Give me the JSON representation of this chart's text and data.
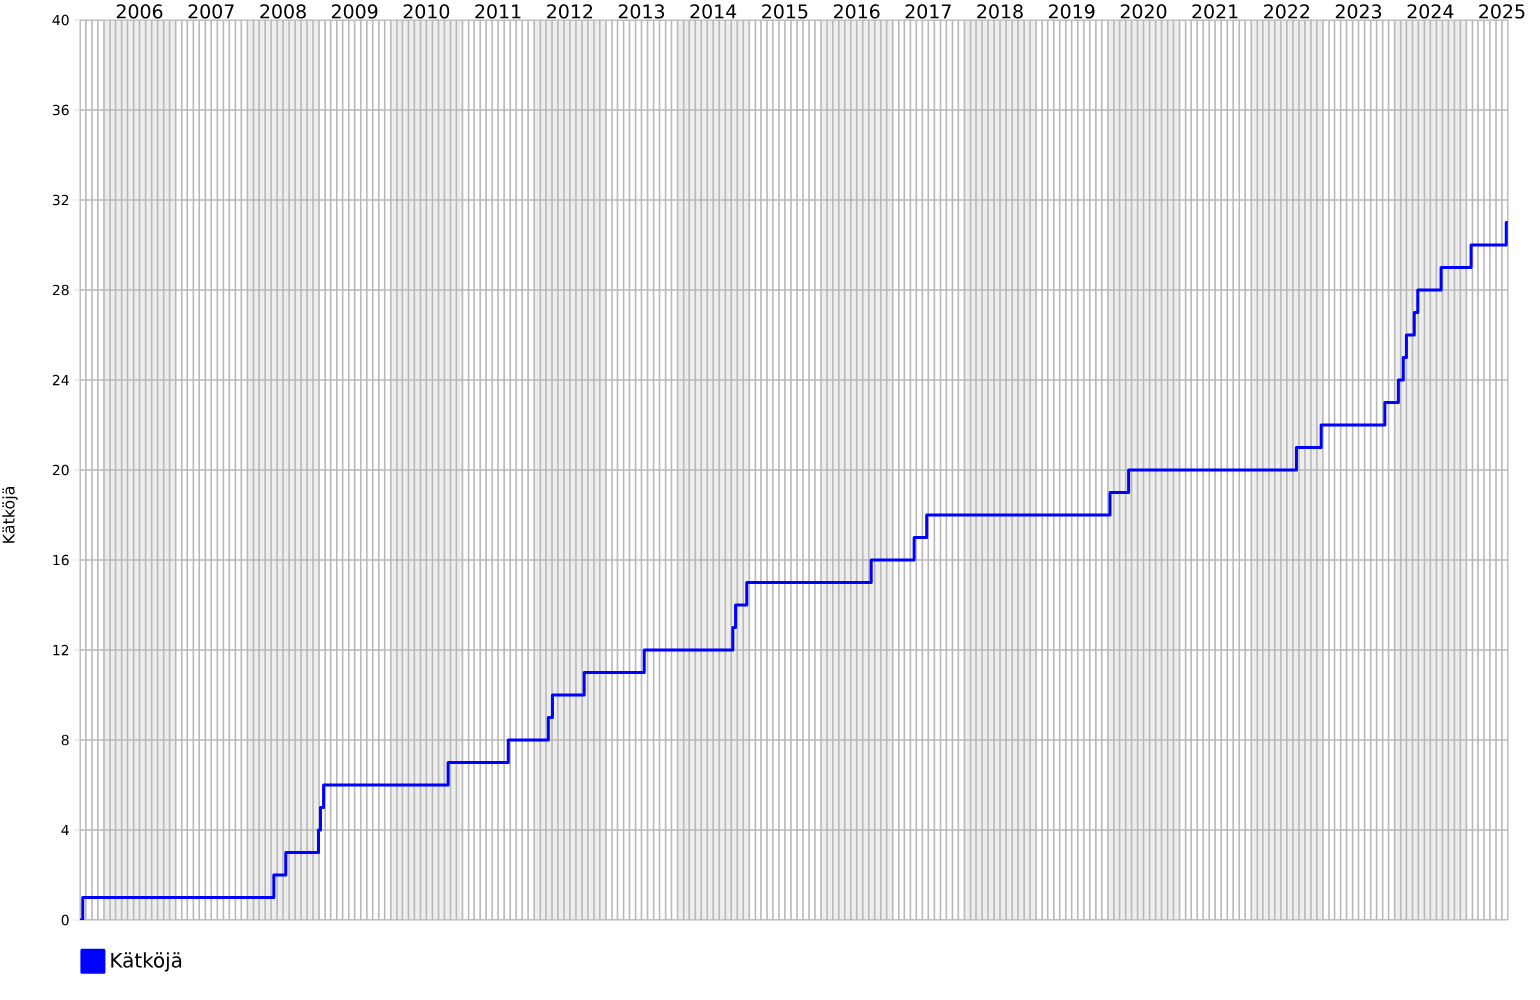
{
  "chart_data": {
    "type": "step",
    "ylabel": "Kätköjä",
    "xlim": [
      "2005-09",
      "2025-08"
    ],
    "ylim": [
      0,
      40
    ],
    "yticks": [
      0,
      4,
      8,
      12,
      16,
      20,
      24,
      28,
      32,
      36,
      40
    ],
    "xticks": [
      {
        "value": "2005-09",
        "label": null
      },
      {
        "value": "2005-10",
        "label": null
      },
      {
        "value": "2005-11",
        "label": null
      },
      {
        "value": "2005-12",
        "label": null
      },
      {
        "value": "2006-01",
        "label": null
      },
      {
        "value": "2006-02",
        "label": null
      },
      {
        "value": "2006-03",
        "label": null
      },
      {
        "value": "2006-04",
        "label": null
      },
      {
        "value": "2006-05",
        "label": null
      },
      {
        "value": "2006-06",
        "label": null
      },
      {
        "value": "2006-07",
        "label": "2006"
      },
      {
        "value": "2006-08",
        "label": null
      },
      {
        "value": "2006-09",
        "label": null
      },
      {
        "value": "2006-10",
        "label": null
      },
      {
        "value": "2006-11",
        "label": null
      },
      {
        "value": "2006-12",
        "label": null
      },
      {
        "value": "2007-01",
        "label": null
      },
      {
        "value": "2007-02",
        "label": null
      },
      {
        "value": "2007-03",
        "label": null
      },
      {
        "value": "2007-04",
        "label": null
      },
      {
        "value": "2007-05",
        "label": null
      },
      {
        "value": "2007-06",
        "label": null
      },
      {
        "value": "2007-07",
        "label": "2007"
      },
      {
        "value": "2007-08",
        "label": null
      },
      {
        "value": "2007-09",
        "label": null
      },
      {
        "value": "2007-10",
        "label": null
      },
      {
        "value": "2007-11",
        "label": null
      },
      {
        "value": "2007-12",
        "label": null
      },
      {
        "value": "2008-01",
        "label": null
      },
      {
        "value": "2008-02",
        "label": null
      },
      {
        "value": "2008-03",
        "label": null
      },
      {
        "value": "2008-04",
        "label": null
      },
      {
        "value": "2008-05",
        "label": null
      },
      {
        "value": "2008-06",
        "label": null
      },
      {
        "value": "2008-07",
        "label": "2008"
      },
      {
        "value": "2008-08",
        "label": null
      },
      {
        "value": "2008-09",
        "label": null
      },
      {
        "value": "2008-10",
        "label": null
      },
      {
        "value": "2008-11",
        "label": null
      },
      {
        "value": "2008-12",
        "label": null
      },
      {
        "value": "2009-01",
        "label": null
      },
      {
        "value": "2009-02",
        "label": null
      },
      {
        "value": "2009-03",
        "label": null
      },
      {
        "value": "2009-04",
        "label": null
      },
      {
        "value": "2009-05",
        "label": null
      },
      {
        "value": "2009-06",
        "label": null
      },
      {
        "value": "2009-07",
        "label": "2009"
      },
      {
        "value": "2009-08",
        "label": null
      },
      {
        "value": "2009-09",
        "label": null
      },
      {
        "value": "2009-10",
        "label": null
      },
      {
        "value": "2009-11",
        "label": null
      },
      {
        "value": "2009-12",
        "label": null
      },
      {
        "value": "2010-01",
        "label": null
      },
      {
        "value": "2010-02",
        "label": null
      },
      {
        "value": "2010-03",
        "label": null
      },
      {
        "value": "2010-04",
        "label": null
      },
      {
        "value": "2010-05",
        "label": null
      },
      {
        "value": "2010-06",
        "label": null
      },
      {
        "value": "2010-07",
        "label": "2010"
      },
      {
        "value": "2010-08",
        "label": null
      },
      {
        "value": "2010-09",
        "label": null
      },
      {
        "value": "2010-10",
        "label": null
      },
      {
        "value": "2010-11",
        "label": null
      },
      {
        "value": "2010-12",
        "label": null
      },
      {
        "value": "2011-01",
        "label": null
      },
      {
        "value": "2011-02",
        "label": null
      },
      {
        "value": "2011-03",
        "label": null
      },
      {
        "value": "2011-04",
        "label": null
      },
      {
        "value": "2011-05",
        "label": null
      },
      {
        "value": "2011-06",
        "label": null
      },
      {
        "value": "2011-07",
        "label": "2011"
      },
      {
        "value": "2011-08",
        "label": null
      },
      {
        "value": "2011-09",
        "label": null
      },
      {
        "value": "2011-10",
        "label": null
      },
      {
        "value": "2011-11",
        "label": null
      },
      {
        "value": "2011-12",
        "label": null
      },
      {
        "value": "2012-01",
        "label": null
      },
      {
        "value": "2012-02",
        "label": null
      },
      {
        "value": "2012-03",
        "label": null
      },
      {
        "value": "2012-04",
        "label": null
      },
      {
        "value": "2012-05",
        "label": null
      },
      {
        "value": "2012-06",
        "label": null
      },
      {
        "value": "2012-07",
        "label": "2012"
      },
      {
        "value": "2012-08",
        "label": null
      },
      {
        "value": "2012-09",
        "label": null
      },
      {
        "value": "2012-10",
        "label": null
      },
      {
        "value": "2012-11",
        "label": null
      },
      {
        "value": "2012-12",
        "label": null
      },
      {
        "value": "2013-01",
        "label": null
      },
      {
        "value": "2013-02",
        "label": null
      },
      {
        "value": "2013-03",
        "label": null
      },
      {
        "value": "2013-04",
        "label": null
      },
      {
        "value": "2013-05",
        "label": null
      },
      {
        "value": "2013-06",
        "label": null
      },
      {
        "value": "2013-07",
        "label": "2013"
      },
      {
        "value": "2013-08",
        "label": null
      },
      {
        "value": "2013-09",
        "label": null
      },
      {
        "value": "2013-10",
        "label": null
      },
      {
        "value": "2013-11",
        "label": null
      },
      {
        "value": "2013-12",
        "label": null
      },
      {
        "value": "2014-01",
        "label": null
      },
      {
        "value": "2014-02",
        "label": null
      },
      {
        "value": "2014-03",
        "label": null
      },
      {
        "value": "2014-04",
        "label": null
      },
      {
        "value": "2014-05",
        "label": null
      },
      {
        "value": "2014-06",
        "label": null
      },
      {
        "value": "2014-07",
        "label": "2014"
      },
      {
        "value": "2014-08",
        "label": null
      },
      {
        "value": "2014-09",
        "label": null
      },
      {
        "value": "2014-10",
        "label": null
      },
      {
        "value": "2014-11",
        "label": null
      },
      {
        "value": "2014-12",
        "label": null
      },
      {
        "value": "2015-01",
        "label": null
      },
      {
        "value": "2015-02",
        "label": null
      },
      {
        "value": "2015-03",
        "label": null
      },
      {
        "value": "2015-04",
        "label": null
      },
      {
        "value": "2015-05",
        "label": null
      },
      {
        "value": "2015-06",
        "label": null
      },
      {
        "value": "2015-07",
        "label": "2015"
      },
      {
        "value": "2015-08",
        "label": null
      },
      {
        "value": "2015-09",
        "label": null
      },
      {
        "value": "2015-10",
        "label": null
      },
      {
        "value": "2015-11",
        "label": null
      },
      {
        "value": "2015-12",
        "label": null
      },
      {
        "value": "2016-01",
        "label": null
      },
      {
        "value": "2016-02",
        "label": null
      },
      {
        "value": "2016-03",
        "label": null
      },
      {
        "value": "2016-04",
        "label": null
      },
      {
        "value": "2016-05",
        "label": null
      },
      {
        "value": "2016-06",
        "label": null
      },
      {
        "value": "2016-07",
        "label": "2016"
      },
      {
        "value": "2016-08",
        "label": null
      },
      {
        "value": "2016-09",
        "label": null
      },
      {
        "value": "2016-10",
        "label": null
      },
      {
        "value": "2016-11",
        "label": null
      },
      {
        "value": "2016-12",
        "label": null
      },
      {
        "value": "2017-01",
        "label": null
      },
      {
        "value": "2017-02",
        "label": null
      },
      {
        "value": "2017-03",
        "label": null
      },
      {
        "value": "2017-04",
        "label": null
      },
      {
        "value": "2017-05",
        "label": null
      },
      {
        "value": "2017-06",
        "label": null
      },
      {
        "value": "2017-07",
        "label": "2017"
      },
      {
        "value": "2017-08",
        "label": null
      },
      {
        "value": "2017-09",
        "label": null
      },
      {
        "value": "2017-10",
        "label": null
      },
      {
        "value": "2017-11",
        "label": null
      },
      {
        "value": "2017-12",
        "label": null
      },
      {
        "value": "2018-01",
        "label": null
      },
      {
        "value": "2018-02",
        "label": null
      },
      {
        "value": "2018-03",
        "label": null
      },
      {
        "value": "2018-04",
        "label": null
      },
      {
        "value": "2018-05",
        "label": null
      },
      {
        "value": "2018-06",
        "label": null
      },
      {
        "value": "2018-07",
        "label": "2018"
      },
      {
        "value": "2018-08",
        "label": null
      },
      {
        "value": "2018-09",
        "label": null
      },
      {
        "value": "2018-10",
        "label": null
      },
      {
        "value": "2018-11",
        "label": null
      },
      {
        "value": "2018-12",
        "label": null
      },
      {
        "value": "2019-01",
        "label": null
      },
      {
        "value": "2019-02",
        "label": null
      },
      {
        "value": "2019-03",
        "label": null
      },
      {
        "value": "2019-04",
        "label": null
      },
      {
        "value": "2019-05",
        "label": null
      },
      {
        "value": "2019-06",
        "label": null
      },
      {
        "value": "2019-07",
        "label": "2019"
      },
      {
        "value": "2019-08",
        "label": null
      },
      {
        "value": "2019-09",
        "label": null
      },
      {
        "value": "2019-10",
        "label": null
      },
      {
        "value": "2019-11",
        "label": null
      },
      {
        "value": "2019-12",
        "label": null
      },
      {
        "value": "2020-01",
        "label": null
      },
      {
        "value": "2020-02",
        "label": null
      },
      {
        "value": "2020-03",
        "label": null
      },
      {
        "value": "2020-04",
        "label": null
      },
      {
        "value": "2020-05",
        "label": null
      },
      {
        "value": "2020-06",
        "label": null
      },
      {
        "value": "2020-07",
        "label": "2020"
      },
      {
        "value": "2020-08",
        "label": null
      },
      {
        "value": "2020-09",
        "label": null
      },
      {
        "value": "2020-10",
        "label": null
      },
      {
        "value": "2020-11",
        "label": null
      },
      {
        "value": "2020-12",
        "label": null
      },
      {
        "value": "2021-01",
        "label": null
      },
      {
        "value": "2021-02",
        "label": null
      },
      {
        "value": "2021-03",
        "label": null
      },
      {
        "value": "2021-04",
        "label": null
      },
      {
        "value": "2021-05",
        "label": null
      },
      {
        "value": "2021-06",
        "label": null
      },
      {
        "value": "2021-07",
        "label": "2021"
      },
      {
        "value": "2021-08",
        "label": null
      },
      {
        "value": "2021-09",
        "label": null
      },
      {
        "value": "2021-10",
        "label": null
      },
      {
        "value": "2021-11",
        "label": null
      },
      {
        "value": "2021-12",
        "label": null
      },
      {
        "value": "2022-01",
        "label": null
      },
      {
        "value": "2022-02",
        "label": null
      },
      {
        "value": "2022-03",
        "label": null
      },
      {
        "value": "2022-04",
        "label": null
      },
      {
        "value": "2022-05",
        "label": null
      },
      {
        "value": "2022-06",
        "label": null
      },
      {
        "value": "2022-07",
        "label": "2022"
      },
      {
        "value": "2022-08",
        "label": null
      },
      {
        "value": "2022-09",
        "label": null
      },
      {
        "value": "2022-10",
        "label": null
      },
      {
        "value": "2022-11",
        "label": null
      },
      {
        "value": "2022-12",
        "label": null
      },
      {
        "value": "2023-01",
        "label": null
      },
      {
        "value": "2023-02",
        "label": null
      },
      {
        "value": "2023-03",
        "label": null
      },
      {
        "value": "2023-04",
        "label": null
      },
      {
        "value": "2023-05",
        "label": null
      },
      {
        "value": "2023-06",
        "label": null
      },
      {
        "value": "2023-07",
        "label": "2023"
      },
      {
        "value": "2023-08",
        "label": null
      },
      {
        "value": "2023-09",
        "label": null
      },
      {
        "value": "2023-10",
        "label": null
      },
      {
        "value": "2023-11",
        "label": null
      },
      {
        "value": "2023-12",
        "label": null
      },
      {
        "value": "2024-01",
        "label": null
      },
      {
        "value": "2024-02",
        "label": null
      },
      {
        "value": "2024-03",
        "label": null
      },
      {
        "value": "2024-04",
        "label": null
      },
      {
        "value": "2024-05",
        "label": null
      },
      {
        "value": "2024-06",
        "label": null
      },
      {
        "value": "2024-07",
        "label": "2024"
      },
      {
        "value": "2024-08",
        "label": null
      },
      {
        "value": "2024-09",
        "label": null
      },
      {
        "value": "2024-10",
        "label": null
      },
      {
        "value": "2024-11",
        "label": null
      },
      {
        "value": "2024-12",
        "label": null
      },
      {
        "value": "2025-01",
        "label": null
      },
      {
        "value": "2025-02",
        "label": null
      },
      {
        "value": "2025-03",
        "label": null
      },
      {
        "value": "2025-04",
        "label": null
      },
      {
        "value": "2025-05",
        "label": null
      },
      {
        "value": "2025-06",
        "label": null
      },
      {
        "value": "2025-07",
        "label": "2025"
      },
      {
        "value": "2025-08",
        "label": null
      }
    ],
    "grid": true,
    "legend": "bottom left",
    "bands": [
      {
        "axis": "x",
        "from": "2006",
        "to": "2007",
        "color": "#eeeeee"
      },
      {
        "axis": "x",
        "from": "2008",
        "to": "2009",
        "color": "#eeeeee"
      },
      {
        "axis": "x",
        "from": "2010",
        "to": "2011",
        "color": "#eeeeee"
      },
      {
        "axis": "x",
        "from": "2012",
        "to": "2013",
        "color": "#eeeeee"
      },
      {
        "axis": "x",
        "from": "2014",
        "to": "2015",
        "color": "#eeeeee"
      },
      {
        "axis": "x",
        "from": "2016",
        "to": "2017",
        "color": "#eeeeee"
      },
      {
        "axis": "x",
        "from": "2018",
        "to": "2019",
        "color": "#eeeeee"
      },
      {
        "axis": "x",
        "from": "2020",
        "to": "2021",
        "color": "#eeeeee"
      },
      {
        "axis": "x",
        "from": "2022",
        "to": "2023",
        "color": "#eeeeee"
      },
      {
        "axis": "x",
        "from": "2024",
        "to": "2025",
        "color": "#eeeeee"
      }
    ],
    "series": [
      {
        "name": "Kätköjä",
        "color": "#0000ff",
        "x": [
          "2005-09-01",
          "2005-09-15",
          "2008-05-15",
          "2008-07-15",
          "2008-12-29",
          "2009-01-08",
          "2009-01-24",
          "2010-10-20",
          "2011-08-22",
          "2012-03-13",
          "2012-04-03",
          "2012-09-12",
          "2013-07-15",
          "2014-10-09",
          "2014-10-23",
          "2014-12-19",
          "2016-09-13",
          "2017-04-20",
          "2017-06-23",
          "2020-01-12",
          "2020-04-16",
          "2022-08-19",
          "2022-12-23",
          "2023-11-12",
          "2024-01-20",
          "2024-02-14",
          "2024-03-01",
          "2024-04-10",
          "2024-04-28",
          "2024-08-25",
          "2025-01-25",
          "2025-07-23",
          "2025-07-31"
        ],
        "values": [
          0,
          1,
          2,
          3,
          4,
          5,
          6,
          7,
          8,
          9,
          10,
          11,
          12,
          13,
          14,
          15,
          16,
          17,
          18,
          19,
          20,
          21,
          22,
          23,
          24,
          25,
          26,
          27,
          28,
          29,
          30,
          31,
          31
        ]
      }
    ]
  }
}
